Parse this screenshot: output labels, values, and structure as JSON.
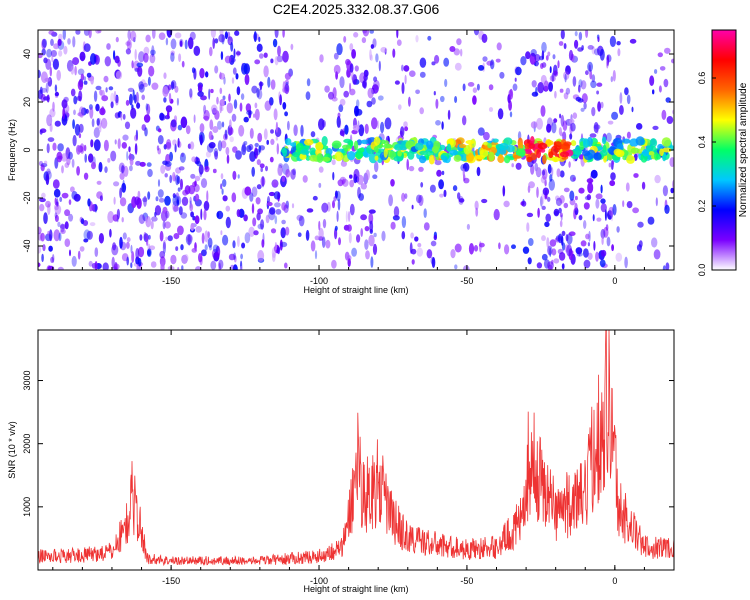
{
  "figure": {
    "title": "C2E4.2025.332.08.37.G06"
  },
  "chart_data": [
    {
      "type": "heatmap",
      "xlabel": "Height of straight line (km)",
      "ylabel": "Frequency (Hz)",
      "xlim": [
        -195,
        20
      ],
      "ylim": [
        -50,
        50
      ],
      "x_ticks": [
        -150,
        -100,
        -50,
        0
      ],
      "y_ticks": [
        -40,
        -20,
        0,
        20,
        40
      ],
      "colorbar": {
        "label": "Normalized spectral amplitude",
        "range": [
          0.0,
          0.75
        ],
        "ticks": [
          0.0,
          0.2,
          0.4,
          0.6
        ],
        "colormap": [
          "#ffffff",
          "#7a00ff",
          "#0000ff",
          "#00c8ff",
          "#00ff66",
          "#ffff00",
          "#ff6600",
          "#ff0000",
          "#ff00aa"
        ]
      },
      "signal_band": {
        "x_range": [
          -112,
          20
        ],
        "center_hz": 0
      },
      "dense_regions_x": [
        [
          -195,
          -110
        ],
        [
          -95,
          -80
        ],
        [
          -30,
          0
        ]
      ]
    },
    {
      "type": "line",
      "xlabel": "Height of straight line (km)",
      "ylabel": "SNR (10 * v/v)",
      "xlim": [
        -195,
        20
      ],
      "ylim": [
        0,
        3800
      ],
      "x_ticks": [
        -150,
        -100,
        -50,
        0
      ],
      "y_ticks": [
        1000,
        2000,
        3000
      ],
      "color": "#ee3333",
      "profile_x": [
        -195,
        -180,
        -170,
        -165,
        -163,
        -160,
        -158,
        -150,
        -120,
        -100,
        -92,
        -88,
        -87,
        -85,
        -80,
        -75,
        -70,
        -60,
        -50,
        -40,
        -31,
        -29,
        -20,
        -10,
        -7,
        -5,
        -3,
        -1,
        1,
        5,
        10,
        20
      ],
      "profile_y": [
        300,
        320,
        400,
        1000,
        1650,
        800,
        250,
        200,
        200,
        300,
        500,
        1800,
        2600,
        1600,
        1900,
        1100,
        700,
        550,
        450,
        500,
        1100,
        2500,
        1300,
        1600,
        2700,
        3100,
        3750,
        3500,
        1400,
        1000,
        500,
        500
      ]
    }
  ]
}
